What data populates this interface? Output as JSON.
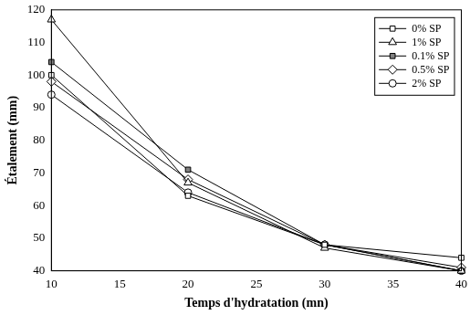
{
  "chart_data": {
    "type": "line",
    "x_label": "Temps d'hydratation (mn)",
    "y_label": "Étalement (mm)",
    "x": [
      10,
      20,
      30,
      40
    ],
    "series": [
      {
        "name": "0% SP",
        "color": "#000000",
        "marker": "square",
        "values": [
          100,
          63,
          48,
          44
        ]
      },
      {
        "name": "1% SP",
        "color": "#000000",
        "marker": "triangle",
        "values": [
          117,
          67,
          47,
          40
        ]
      },
      {
        "name": "0.1% SP",
        "color": "#000000",
        "marker": "filled_square",
        "values": [
          104,
          71,
          48,
          40
        ]
      },
      {
        "name": "0.5% SP",
        "color": "#000000",
        "marker": "diamond",
        "values": [
          98,
          68,
          48,
          41
        ]
      },
      {
        "name": "2% SP",
        "color": "#000000",
        "marker": "circle",
        "values": [
          94,
          64,
          48,
          40
        ]
      }
    ],
    "xlim": [
      10,
      40
    ],
    "xticks": [
      10,
      15,
      20,
      25,
      30,
      35,
      40
    ],
    "ylim": [
      40,
      120
    ],
    "yticks": [
      40,
      50,
      60,
      70,
      80,
      90,
      100,
      110,
      120
    ],
    "grid": false,
    "legend": "upper right"
  }
}
